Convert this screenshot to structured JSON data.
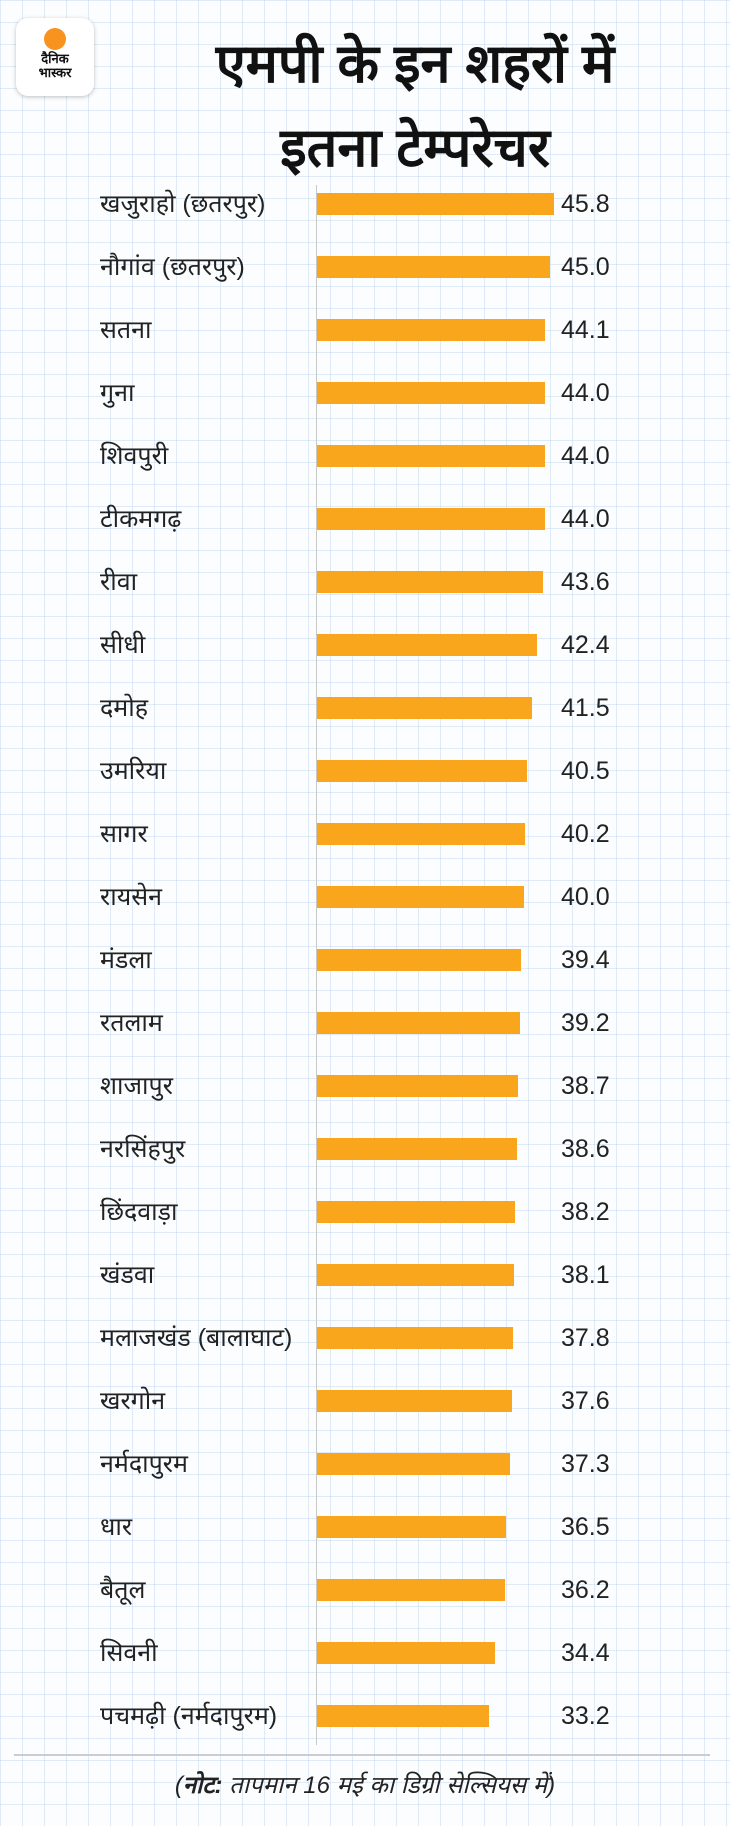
{
  "logo": {
    "line1": "दैनिक",
    "line2": "भास्कर"
  },
  "chart_data": {
    "type": "bar",
    "orientation": "horizontal",
    "title": [
      "एमपी के इन शहरों में",
      "इतना टेम्परेचर"
    ],
    "xlim": [
      0,
      46
    ],
    "categories": [
      "खजुराहो (छतरपुर)",
      "नौगांव (छतरपुर)",
      "सतना",
      "गुना",
      "शिवपुरी",
      "टीकमगढ़",
      "रीवा",
      "सीधी",
      "दमोह",
      "उमरिया",
      "सागर",
      "रायसेन",
      "मंडला",
      "रतलाम",
      "शाजापुर",
      "नरसिंहपुर",
      "छिंदवाड़ा",
      "खंडवा",
      "मलाजखंड (बालाघाट)",
      "खरगोन",
      "नर्मदापुरम",
      "धार",
      "बैतूल",
      "सिवनी",
      "पचमढ़ी (नर्मदापुरम)"
    ],
    "values": [
      45.8,
      45.0,
      44.1,
      44.0,
      44.0,
      44.0,
      43.6,
      42.4,
      41.5,
      40.5,
      40.2,
      40.0,
      39.4,
      39.2,
      38.7,
      38.6,
      38.2,
      38.1,
      37.8,
      37.6,
      37.3,
      36.5,
      36.2,
      34.4,
      33.2
    ],
    "value_labels": [
      "45.8",
      "45.0",
      "44.1",
      "44.0",
      "44.0",
      "44.0",
      "43.6",
      "42.4",
      "41.5",
      "40.5",
      "40.2",
      "40.0",
      "39.4",
      "39.2",
      "38.7",
      "38.6",
      "38.2",
      "38.1",
      "37.8",
      "37.6",
      "37.3",
      "36.5",
      "36.2",
      "34.4",
      "33.2"
    ],
    "bar_color": "#f9a61c"
  },
  "note": {
    "prefix": "नोट:",
    "text": " तापमान 16 मई का डिग्री सेल्सियस में"
  }
}
